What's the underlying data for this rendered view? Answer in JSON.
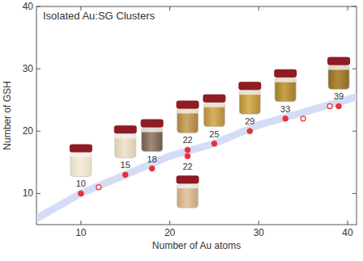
{
  "chart_data": {
    "type": "scatter",
    "title": "Isolated Au:SG Clusters",
    "x_label": "Number of Au atoms",
    "y_label": "Number of GSH",
    "xlim": [
      5,
      41
    ],
    "ylim": [
      5,
      40
    ],
    "xticks": [
      10,
      20,
      30,
      40
    ],
    "yticks": [
      10,
      20,
      30,
      40
    ],
    "grid": false,
    "series": [
      {
        "type": "scatter",
        "color": "#e8303a",
        "marker": "circle",
        "data_labels": true,
        "x": [
          10,
          15,
          18,
          22,
          22,
          25,
          29,
          33,
          39
        ],
        "values": [
          10,
          13,
          14,
          16,
          17,
          18,
          20,
          22,
          24
        ]
      },
      {
        "type": "scatter",
        "color": "#e8303a",
        "marker": "open-circle",
        "x": [
          12,
          35,
          38
        ],
        "values": [
          11,
          22,
          24
        ]
      },
      {
        "type": "line",
        "color": "#c9d5f2",
        "x": [
          5,
          10,
          15,
          20,
          25,
          30,
          35,
          41
        ],
        "values": [
          6,
          10,
          13,
          16,
          18,
          21,
          23,
          25.5
        ]
      }
    ]
  }
}
